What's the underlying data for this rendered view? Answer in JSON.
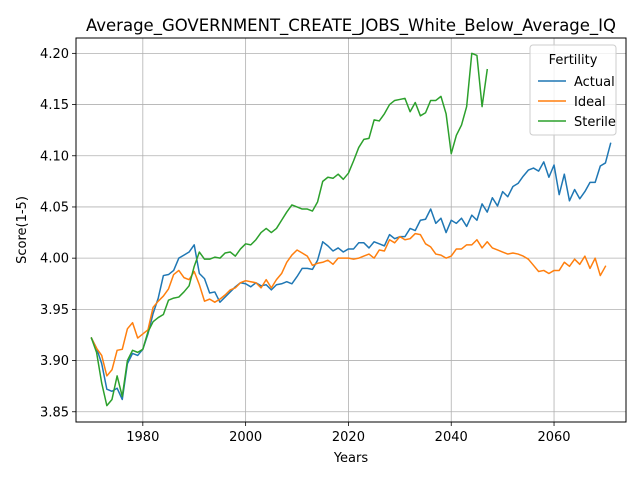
{
  "chart_data": {
    "type": "line",
    "title": "Average_GOVERNMENT_CREATE_JOBS_White_Below_Average_IQ",
    "xlabel": "Years",
    "ylabel": "Score(1-5)",
    "xlim": [
      1967,
      2074
    ],
    "ylim": [
      3.84,
      4.215
    ],
    "xticks": [
      1980,
      2000,
      2020,
      2040,
      2060
    ],
    "yticks": [
      3.85,
      3.9,
      3.95,
      4.0,
      4.05,
      4.1,
      4.15,
      4.2
    ],
    "ytick_labels": [
      "3.85",
      "3.90",
      "3.95",
      "4.00",
      "4.05",
      "4.10",
      "4.15",
      "4.20"
    ],
    "grid": true,
    "legend": {
      "title": "Fertility",
      "placement": "top-right"
    },
    "series": [
      {
        "name": "Actual",
        "color": "#1f77b4",
        "x_start": 1970,
        "values": [
          3.922,
          3.912,
          3.897,
          3.872,
          3.87,
          3.873,
          3.862,
          3.897,
          3.907,
          3.905,
          3.911,
          3.926,
          3.946,
          3.961,
          3.983,
          3.984,
          3.988,
          4.0,
          4.003,
          4.006,
          4.013,
          3.985,
          3.98,
          3.966,
          3.967,
          3.957,
          3.962,
          3.967,
          3.972,
          3.976,
          3.975,
          3.972,
          3.976,
          3.973,
          3.974,
          3.969,
          3.974,
          3.975,
          3.977,
          3.975,
          3.982,
          3.99,
          3.99,
          3.989,
          3.998,
          4.016,
          4.012,
          4.007,
          4.01,
          4.006,
          4.009,
          4.009,
          4.015,
          4.015,
          4.01,
          4.016,
          4.014,
          4.012,
          4.023,
          4.019,
          4.021,
          4.021,
          4.029,
          4.027,
          4.037,
          4.038,
          4.048,
          4.034,
          4.039,
          4.025,
          4.037,
          4.034,
          4.039,
          4.031,
          4.042,
          4.037,
          4.053,
          4.045,
          4.059,
          4.051,
          4.065,
          4.06,
          4.07,
          4.073,
          4.08,
          4.086,
          4.088,
          4.085,
          4.094,
          4.079,
          4.091,
          4.062,
          4.082,
          4.056,
          4.067,
          4.058,
          4.065,
          4.074,
          4.074,
          4.09,
          4.093,
          4.112
        ]
      },
      {
        "name": "Ideal",
        "color": "#ff7f0e",
        "x_start": 1970,
        "values": [
          3.922,
          3.912,
          3.905,
          3.885,
          3.891,
          3.91,
          3.911,
          3.931,
          3.937,
          3.922,
          3.926,
          3.93,
          3.952,
          3.958,
          3.963,
          3.97,
          3.984,
          3.988,
          3.981,
          3.979,
          3.987,
          3.974,
          3.958,
          3.96,
          3.957,
          3.96,
          3.964,
          3.969,
          3.971,
          3.976,
          3.978,
          3.977,
          3.976,
          3.971,
          3.979,
          3.971,
          3.979,
          3.985,
          3.996,
          4.003,
          4.008,
          4.005,
          4.002,
          3.993,
          3.995,
          3.996,
          3.998,
          3.994,
          4.0,
          4.0,
          4.0,
          3.999,
          4.0,
          4.002,
          4.004,
          4.0,
          4.008,
          4.007,
          4.018,
          4.015,
          4.021,
          4.018,
          4.019,
          4.024,
          4.023,
          4.014,
          4.011,
          4.004,
          4.003,
          4.0,
          4.002,
          4.009,
          4.009,
          4.013,
          4.013,
          4.018,
          4.01,
          4.016,
          4.01,
          4.008,
          4.006,
          4.004,
          4.005,
          4.004,
          4.002,
          3.999,
          3.993,
          3.987,
          3.988,
          3.985,
          3.988,
          3.988,
          3.996,
          3.992,
          3.999,
          3.994,
          4.002,
          3.99,
          4.0,
          3.983,
          3.992
        ]
      },
      {
        "name": "Sterile",
        "color": "#2ca02c",
        "x_start": 1970,
        "values": [
          3.922,
          3.908,
          3.878,
          3.856,
          3.862,
          3.885,
          3.865,
          3.9,
          3.91,
          3.908,
          3.911,
          3.928,
          3.938,
          3.942,
          3.945,
          3.959,
          3.961,
          3.962,
          3.967,
          3.973,
          3.992,
          4.006,
          3.999,
          3.999,
          4.001,
          4.0,
          4.005,
          4.006,
          4.002,
          4.009,
          4.014,
          4.013,
          4.018,
          4.025,
          4.029,
          4.025,
          4.029,
          4.037,
          4.045,
          4.052,
          4.05,
          4.048,
          4.048,
          4.046,
          4.055,
          4.075,
          4.079,
          4.078,
          4.082,
          4.077,
          4.083,
          4.095,
          4.108,
          4.116,
          4.117,
          4.135,
          4.134,
          4.141,
          4.15,
          4.154,
          4.155,
          4.156,
          4.143,
          4.152,
          4.139,
          4.142,
          4.154,
          4.154,
          4.158,
          4.141,
          4.102,
          4.12,
          4.13,
          4.148,
          4.2,
          4.198,
          4.148,
          4.184
        ]
      }
    ]
  }
}
